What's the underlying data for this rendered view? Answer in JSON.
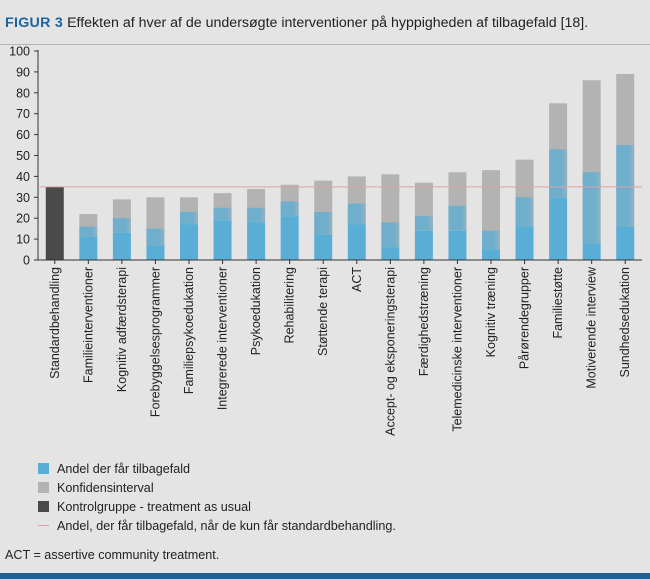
{
  "caption": {
    "label": "FIGUR 3",
    "text": "Effekten af hver af de undersøgte interventioner på hyppigheden af tilbagefald [18]."
  },
  "footnote": "ACT = assertive community treatment.",
  "colors": {
    "background": "#e4e4e4",
    "relapse": "#5aaed5",
    "confidence": "#b3b3b3",
    "control": "#4a4a4a",
    "reference_line": "#e0a0a0",
    "caption_label": "#1b64a3",
    "bottom_bar": "#1e5f96"
  },
  "legend": [
    {
      "label": "Andel der får tilbagefald",
      "kind": "box",
      "color": "#5aaed5"
    },
    {
      "label": "Konfidensinterval",
      "kind": "box",
      "color": "#b3b3b3"
    },
    {
      "label": "Kontrolgruppe - treatment as usual",
      "kind": "box",
      "color": "#4a4a4a"
    },
    {
      "label": "Andel, der får tilbagefald, når de kun får standardbehandling.",
      "kind": "line",
      "color": "#e0a0a0"
    }
  ],
  "chart_data": {
    "type": "bar",
    "title": "",
    "xlabel": "",
    "ylabel": "",
    "ylim": [
      0,
      100
    ],
    "yticks": [
      0,
      10,
      20,
      30,
      40,
      50,
      60,
      70,
      80,
      90,
      100
    ],
    "grid": false,
    "legend_position": "bottom",
    "reference_line": {
      "y": 35,
      "label": "Andel, der får tilbagefald, når de kun får standardbehandling."
    },
    "control": {
      "category": "Standardbehandling",
      "value": 35,
      "name": "Kontrolgruppe - treatment as usual"
    },
    "categories": [
      "Familieinterventioner",
      "Kognitiv adfærdsterapi",
      "Forebyggelsesprogrammer",
      "Familiepsykoedukation",
      "Integrerede interventioner",
      "Psykoedukation",
      "Rehabilitering",
      "Støttende terapi",
      "ACT",
      "Accept- og eksponeringsterapi",
      "Færdighedstræning",
      "Telemedicinske interventioner",
      "Kognitiv træning",
      "Pårørendegrupper",
      "Familiestøtte",
      "Motiverende interview",
      "Sundhedsedukation"
    ],
    "series": [
      {
        "name": "Andel der får tilbagefald",
        "values": [
          16,
          20,
          15,
          23,
          25,
          25,
          28,
          23,
          27,
          18,
          21,
          26,
          14,
          30,
          53,
          42,
          55
        ]
      },
      {
        "name": "Konfidensinterval",
        "lower": [
          11,
          13,
          7,
          17,
          19,
          18,
          21,
          12,
          17,
          6,
          14,
          14,
          5,
          16,
          30,
          8,
          16
        ],
        "upper": [
          22,
          29,
          30,
          30,
          32,
          34,
          36,
          38,
          40,
          41,
          37,
          42,
          43,
          48,
          75,
          86,
          89
        ]
      }
    ]
  }
}
